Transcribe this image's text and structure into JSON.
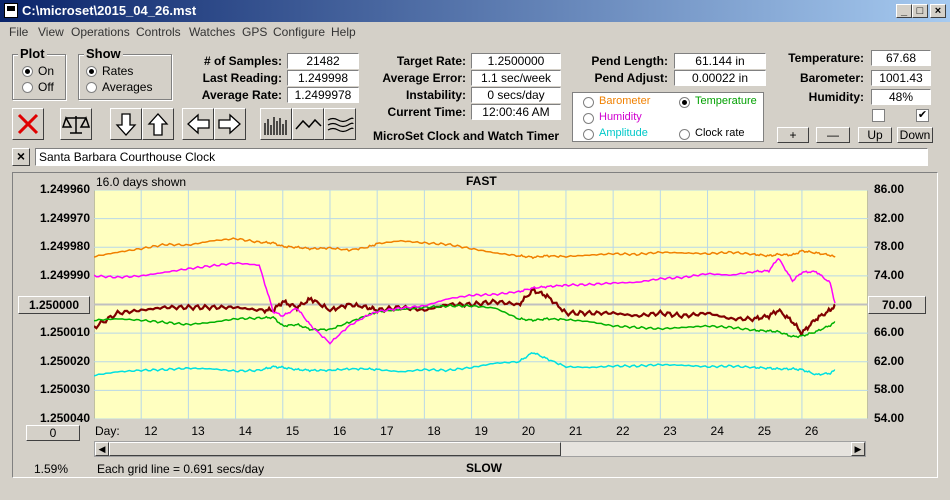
{
  "window": {
    "title": "C:\\microset\\2015_04_26.mst",
    "min": "_",
    "max": "□",
    "close": "×"
  },
  "menu": [
    "File",
    "View",
    "Operations",
    "Controls",
    "Watches",
    "GPS",
    "Configure",
    "Help"
  ],
  "plot_group": {
    "title": "Plot",
    "on": "On",
    "off": "Off",
    "selected": "On"
  },
  "show_group": {
    "title": "Show",
    "rates": "Rates",
    "averages": "Averages",
    "selected": "Rates"
  },
  "stats": {
    "samples_label": "# of Samples:",
    "samples": "21482",
    "last_label": "Last Reading:",
    "last": "1.249998",
    "avg_label": "Average Rate:",
    "avg": "1.2499978"
  },
  "target": {
    "target_label": "Target Rate:",
    "target": "1.2500000",
    "error_label": "Average Error:",
    "error": "1.1 sec/week",
    "instab_label": "Instability:",
    "instab": "0 secs/day",
    "time_label": "Current Time:",
    "time": "12:00:46 AM"
  },
  "pend": {
    "length_label": "Pend Length:",
    "length": "61.144 in",
    "adjust_label": "Pend Adjust:",
    "adjust": "0.00022 in"
  },
  "env": {
    "temp_label": "Temperature:",
    "temp": "67.68",
    "baro_label": "Barometer:",
    "baro": "1001.43",
    "hum_label": "Humidity:",
    "hum": "48%"
  },
  "series_select": {
    "barometer": "Barometer",
    "temperature": "Temperature",
    "humidity": "Humidity",
    "amplitude": "Amplitude",
    "clock_rate": "Clock rate",
    "selected": "Temperature"
  },
  "scale_buttons": {
    "plus": "+",
    "minus": "—",
    "up": "Up",
    "down": "Down"
  },
  "app_caption": "MicroSet Clock and Watch Timer",
  "clock_name": "Santa Barbara Courthouse Clock",
  "close_x": "×",
  "chart": {
    "days_shown": "16.0 days shown",
    "fast": "FAST",
    "slow": "SLOW",
    "grid_note": "Each grid line = 0.691 secs/day",
    "percent": "1.59%",
    "day_label": "Day:",
    "left_btn": "0",
    "right_btn": "70.00",
    "center_btn": "1.250000",
    "colors": {
      "rate": "#800000",
      "temperature": "#00b000",
      "barometer": "#f08000",
      "humidity": "#ff00ff",
      "amplitude": "#00e0e0",
      "plot_bg": "#ffffc0",
      "grid": "#b8d8e8",
      "axis": "#c0c0c0"
    }
  },
  "chart_data": {
    "type": "line",
    "ylim_left": [
      1.24996,
      1.25004
    ],
    "yticks_left": [
      "1.249960",
      "1.249970",
      "1.249980",
      "1.249990",
      "1.250000",
      "1.250010",
      "1.250020",
      "1.250030",
      "1.250040"
    ],
    "ylim_right": [
      54,
      86
    ],
    "yticks_right": [
      "86.00",
      "82.00",
      "78.00",
      "74.00",
      "70.00",
      "66.00",
      "62.00",
      "58.00",
      "54.00"
    ],
    "xticks": [
      "12",
      "13",
      "14",
      "15",
      "16",
      "17",
      "18",
      "19",
      "20",
      "21",
      "22",
      "23",
      "24",
      "25",
      "26"
    ],
    "x_day": [
      11,
      11.5,
      12,
      12.5,
      13,
      13.5,
      14,
      14.5,
      14.8,
      15,
      15.3,
      15.6,
      16,
      16.4,
      16.8,
      17,
      17.5,
      18,
      18.5,
      19,
      19.5,
      20,
      20.3,
      20.6,
      21,
      21.5,
      22,
      22.5,
      23,
      23.5,
      24,
      24.5,
      25,
      25.3,
      25.5,
      25.8,
      26,
      26.3,
      26.6,
      26.7
    ],
    "series": [
      {
        "key": "rate",
        "values": [
          1.249992,
          1.249997,
          1.249998,
          1.249999,
          1.249999,
          1.249999,
          1.249999,
          1.249998,
          1.249998,
          1.250001,
          1.249999,
          1.250002,
          1.249998,
          1.25,
          1.249999,
          1.249998,
          1.249999,
          1.249998,
          1.25,
          1.25,
          1.250001,
          1.25,
          1.250005,
          1.250003,
          1.249997,
          1.249997,
          1.249997,
          1.249996,
          1.249997,
          1.249996,
          1.249997,
          1.249995,
          1.249995,
          1.249996,
          1.249998,
          1.249994,
          1.24999,
          1.249995,
          1.249998,
          1.25
        ]
      },
      {
        "key": "temperature",
        "values": [
          67.8,
          68.0,
          67.8,
          67.5,
          67.2,
          67.5,
          68.0,
          68.1,
          68.2,
          67.0,
          67.2,
          66.5,
          66.5,
          67.5,
          68.5,
          69.0,
          69.3,
          69.6,
          69.8,
          69.8,
          69.5,
          68.0,
          67.8,
          68.0,
          67.9,
          67.6,
          67.0,
          66.8,
          66.6,
          66.8,
          67.0,
          66.8,
          66.4,
          66.3,
          66.2,
          65.5,
          65.6,
          66.2,
          67.1,
          67.5
        ]
      },
      {
        "key": "barometer",
        "values": [
          76.7,
          77.3,
          77.8,
          78.4,
          78.3,
          78.9,
          79.2,
          78.7,
          78.6,
          78.1,
          78.0,
          77.8,
          77.9,
          77.6,
          78.0,
          78.5,
          78.9,
          78.6,
          78.4,
          77.8,
          77.2,
          76.8,
          76.6,
          76.8,
          76.7,
          76.9,
          77.1,
          77.0,
          77.3,
          77.2,
          77.1,
          77.3,
          77.0,
          76.8,
          77.0,
          76.9,
          77.5,
          77.2,
          76.9,
          76.6
        ]
      },
      {
        "key": "humidity",
        "values": [
          74.0,
          73.8,
          74.0,
          74.5,
          75.0,
          75.4,
          75.8,
          75.5,
          69.0,
          68.4,
          69.5,
          67.0,
          64.6,
          67.0,
          68.5,
          69.0,
          69.5,
          69.8,
          70.8,
          71.3,
          71.4,
          71.8,
          72.3,
          72.5,
          72.7,
          72.8,
          73.0,
          73.1,
          73.6,
          73.8,
          74.3,
          74.1,
          74.6,
          74.7,
          76.5,
          73.3,
          74.5,
          74.6,
          73.0,
          70.2
        ]
      },
      {
        "key": "amplitude",
        "values": [
          60.1,
          60.6,
          60.8,
          60.9,
          61.1,
          61.0,
          60.7,
          60.8,
          61.3,
          61.2,
          60.9,
          60.8,
          60.8,
          61.0,
          61.0,
          60.9,
          60.6,
          60.9,
          60.8,
          61.2,
          61.8,
          62.0,
          63.3,
          62.4,
          61.3,
          61.2,
          61.4,
          61.4,
          61.6,
          61.5,
          61.3,
          61.4,
          61.2,
          61.1,
          61.0,
          61.0,
          60.9,
          60.2,
          60.4,
          60.8
        ]
      }
    ]
  }
}
